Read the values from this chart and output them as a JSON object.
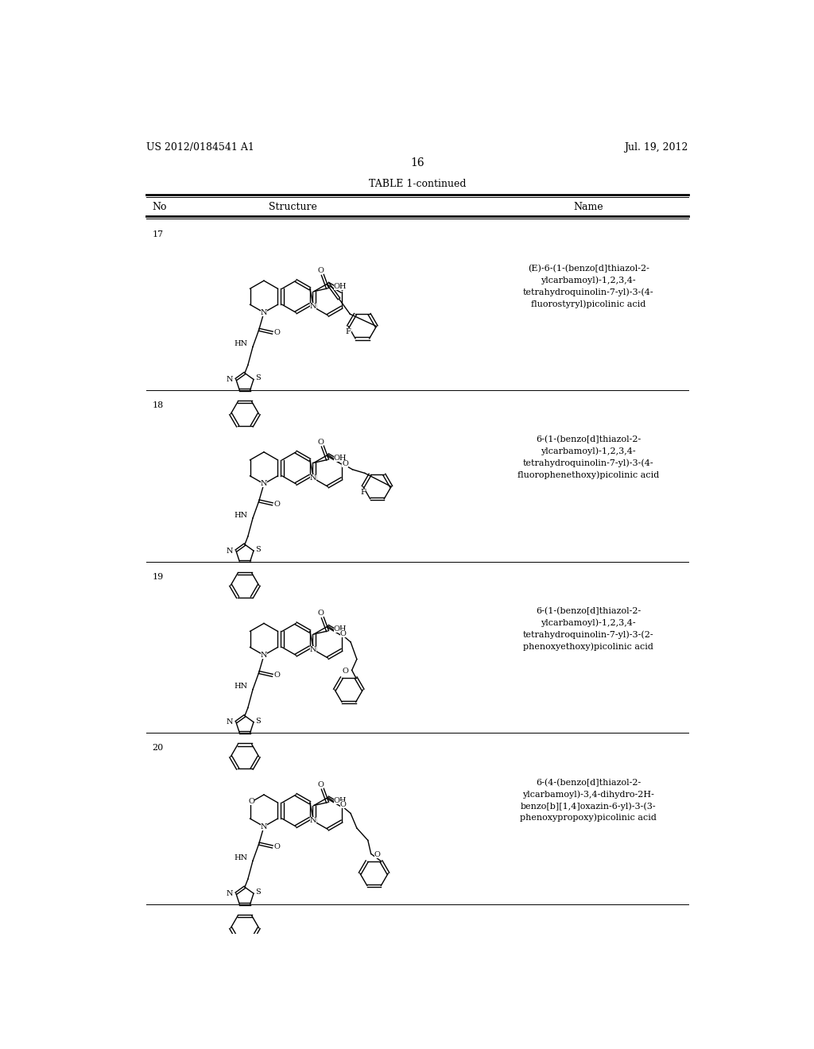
{
  "background_color": "#ffffff",
  "page_number": "16",
  "patent_left": "US 2012/0184541 A1",
  "patent_right": "Jul. 19, 2012",
  "table_title": "TABLE 1-continued",
  "col_no": "No",
  "col_structure": "Structure",
  "col_name": "Name",
  "rows": [
    {
      "no": "17",
      "name": "(E)-6-(1-(benzo[d]thiazol-2-\nylcarbamoyl)-1,2,3,4-\ntetrahydroquinolin-7-yl)-3-(4-\nfluorostyryl)picolinic acid"
    },
    {
      "no": "18",
      "name": "6-(1-(benzo[d]thiazol-2-\nylcarbamoyl)-1,2,3,4-\ntetrahydroquinolin-7-yl)-3-(4-\nfluorophenethoxy)picolinic acid"
    },
    {
      "no": "19",
      "name": "6-(1-(benzo[d]thiazol-2-\nylcarbamoyl)-1,2,3,4-\ntetrahydroquinolin-7-yl)-3-(2-\nphenoxyethoxy)picolinic acid"
    },
    {
      "no": "20",
      "name": "6-(4-(benzo[d]thiazol-2-\nylcarbamoyl)-3,4-dihydro-2H-\nbenzo[b][1,4]oxazin-6-yl)-3-(3-\nphenoxypropoxy)picolinic acid"
    }
  ],
  "font_size_header": 9,
  "font_size_body": 8,
  "font_size_patent": 9,
  "font_size_page": 10,
  "font_size_table_title": 9,
  "line_color": "#000000",
  "text_color": "#000000"
}
